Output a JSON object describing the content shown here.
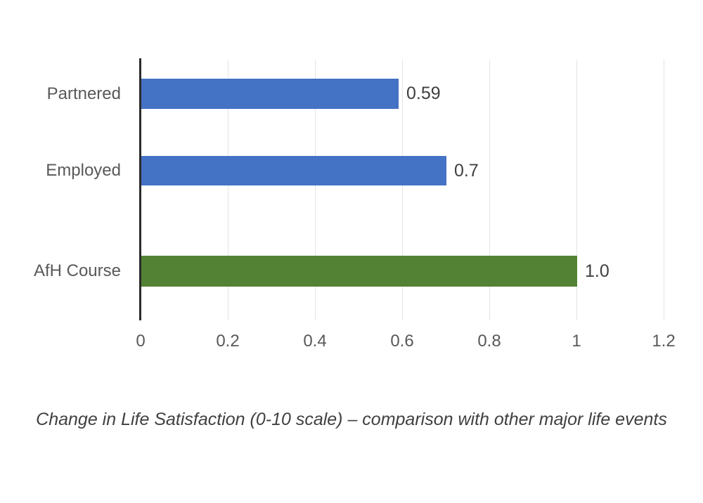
{
  "figure": {
    "caption": "Change in Life Satisfaction (0-10 scale) – comparison with other major life events"
  },
  "chart_data": {
    "type": "bar",
    "orientation": "horizontal",
    "title": "",
    "xlabel": "",
    "ylabel": "",
    "categories": [
      "Partnered",
      "Employed",
      "AfH Course"
    ],
    "values": [
      0.59,
      0.7,
      1.0
    ],
    "value_labels": [
      "0.59",
      "0.7",
      "1.0"
    ],
    "bar_colors": [
      "#4472C4",
      "#4472C4",
      "#548235"
    ],
    "x_ticks": [
      0,
      0.2,
      0.4,
      0.6,
      0.8,
      1,
      1.2
    ],
    "x_tick_labels": [
      "0",
      "0.2",
      "0.4",
      "0.6",
      "0.8",
      "1",
      "1.2"
    ],
    "xlim": [
      0,
      1.2
    ],
    "grid": "vertical",
    "legend": "none",
    "colors": {
      "axis_line": "#2b2b2b",
      "gridline": "#e4e4e4",
      "label_text": "#595959",
      "value_text": "#3f3f3f",
      "blue_bar": "#4472C4",
      "green_bar": "#548235"
    }
  }
}
